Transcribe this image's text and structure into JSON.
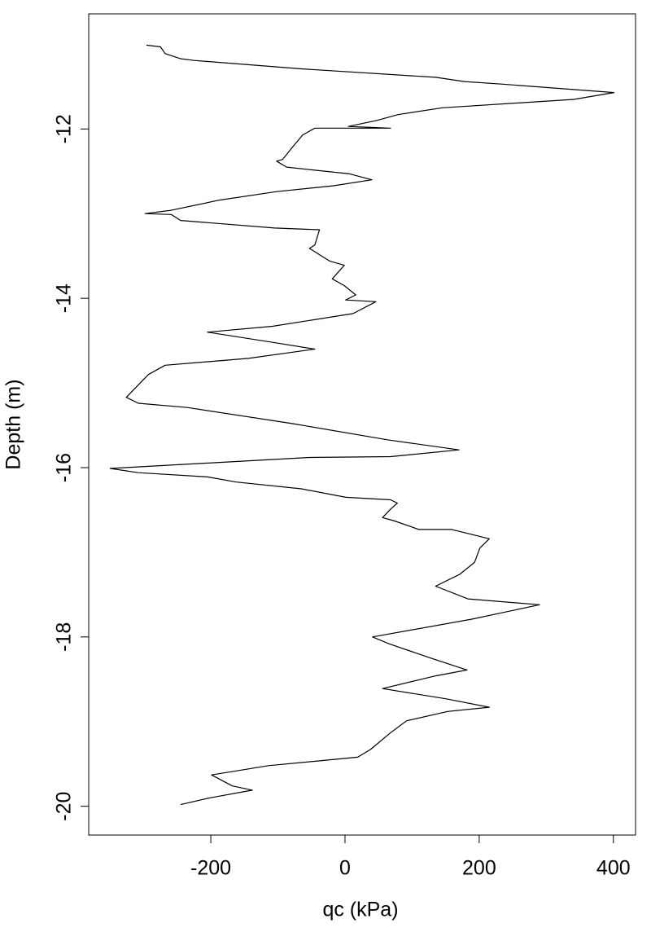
{
  "chart_data": {
    "type": "line",
    "xlabel": "qc (kPa)",
    "ylabel": "Depth (m)",
    "color": "#000000",
    "xlim": [
      -382,
      433
    ],
    "xticks": [
      -200,
      0,
      200,
      400
    ],
    "ylim": [
      -20.34,
      -10.64
    ],
    "yticks": [
      -20,
      -18,
      -16,
      -14,
      -12
    ],
    "x": [
      -296,
      -275,
      -268,
      -245,
      -225,
      -65,
      135,
      178,
      235,
      401,
      341,
      145,
      79,
      47,
      5,
      68,
      -45,
      -63,
      -78,
      -93,
      -102,
      -87,
      -53,
      7,
      40,
      -17,
      -102,
      -187,
      -259,
      -298,
      -259,
      -245,
      -105,
      -38,
      -45,
      -53,
      -23,
      -1,
      -19,
      -1,
      16,
      1,
      46,
      12,
      -108,
      -205,
      -108,
      -45,
      -144,
      -268,
      -293,
      -326,
      -308,
      -235,
      -78,
      62,
      170,
      68,
      -53,
      -350,
      -308,
      -205,
      -162,
      -65,
      1,
      68,
      78,
      68,
      56,
      74,
      110,
      159,
      215,
      201,
      193,
      171,
      135,
      183,
      290,
      189,
      41,
      65,
      128,
      182,
      135,
      56,
      150,
      215,
      153,
      92,
      68,
      38,
      19,
      -114,
      -199,
      -168,
      -138,
      -201,
      -245
    ],
    "values": [
      -11.01,
      -11.03,
      -11.11,
      -11.17,
      -11.19,
      -11.29,
      -11.39,
      -11.44,
      -11.47,
      -11.57,
      -11.65,
      -11.75,
      -11.83,
      -11.9,
      -11.97,
      -11.99,
      -11.99,
      -12.07,
      -12.21,
      -12.36,
      -12.38,
      -12.45,
      -12.48,
      -12.53,
      -12.6,
      -12.67,
      -12.74,
      -12.84,
      -12.96,
      -13.0,
      -13.01,
      -13.08,
      -13.17,
      -13.19,
      -13.37,
      -13.41,
      -13.56,
      -13.61,
      -13.77,
      -13.85,
      -13.96,
      -14.02,
      -14.04,
      -14.18,
      -14.33,
      -14.4,
      -14.52,
      -14.6,
      -14.71,
      -14.79,
      -14.9,
      -15.17,
      -15.24,
      -15.29,
      -15.48,
      -15.67,
      -15.79,
      -15.87,
      -15.88,
      -16.01,
      -16.06,
      -16.11,
      -16.17,
      -16.25,
      -16.35,
      -16.38,
      -16.42,
      -16.49,
      -16.59,
      -16.63,
      -16.73,
      -16.73,
      -16.84,
      -16.95,
      -17.12,
      -17.26,
      -17.4,
      -17.55,
      -17.62,
      -17.79,
      -18.0,
      -18.08,
      -18.25,
      -18.39,
      -18.46,
      -18.61,
      -18.73,
      -18.83,
      -18.88,
      -18.99,
      -19.13,
      -19.33,
      -19.42,
      -19.52,
      -19.63,
      -19.76,
      -19.81,
      -19.9,
      -19.98
    ]
  }
}
